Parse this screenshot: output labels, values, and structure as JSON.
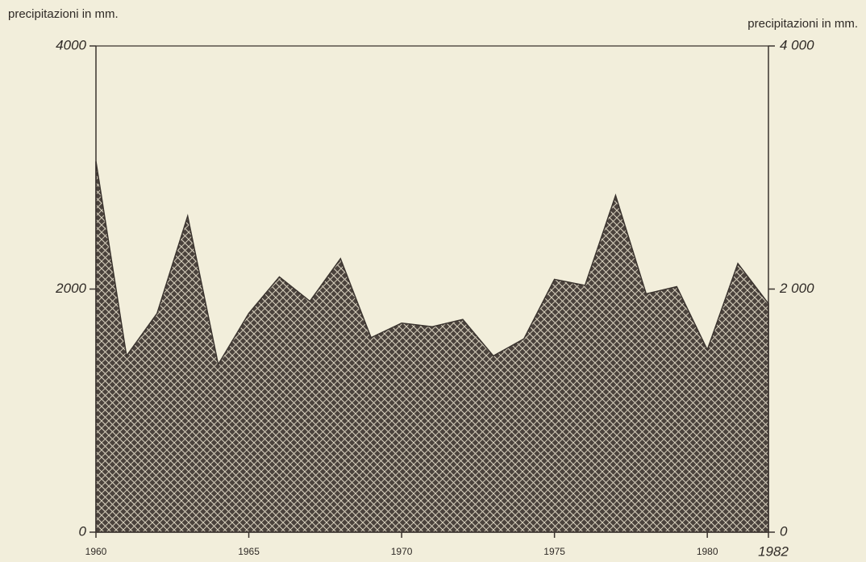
{
  "chart_data": {
    "type": "area",
    "y_label": "precipitazioni in mm.",
    "y2_label": "precipitazioni in mm.",
    "x": [
      1960,
      1961,
      1962,
      1963,
      1964,
      1965,
      1966,
      1967,
      1968,
      1969,
      1970,
      1971,
      1972,
      1973,
      1974,
      1975,
      1976,
      1977,
      1978,
      1979,
      1980,
      1981,
      1982
    ],
    "values": [
      3050,
      1450,
      1800,
      2600,
      1380,
      1800,
      2100,
      1900,
      2250,
      1600,
      1720,
      1690,
      1750,
      1450,
      1590,
      2080,
      2030,
      2770,
      1960,
      2020,
      1500,
      2210,
      1880
    ],
    "color": "#3a332e",
    "xlim": [
      1960,
      1982
    ],
    "xticks": [
      1960,
      1965,
      1970,
      1975,
      1980,
      1982
    ],
    "ylim": [
      0,
      4000
    ],
    "yticks": [
      0,
      2000,
      4000
    ],
    "y2lim": [
      0,
      4000
    ],
    "y2ticks": [
      0,
      {
        "value": 2000,
        "label": "2 000"
      },
      {
        "value": 4000,
        "label": "4 000"
      }
    ]
  }
}
